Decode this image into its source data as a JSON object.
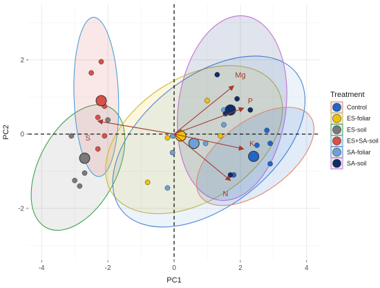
{
  "chart_data": {
    "type": "scatter",
    "xlabel": "PC1",
    "ylabel": "PC2",
    "xlim": [
      -4.4,
      4.4
    ],
    "ylim": [
      -3.4,
      3.5
    ],
    "xticks": [
      -4,
      -2,
      0,
      2,
      4
    ],
    "yticks": [
      -2,
      0,
      2
    ],
    "grid": true,
    "legend": {
      "title": "Treatment",
      "position": "right",
      "entries": [
        "Control",
        "ES-foliar",
        "ES-soil",
        "ES+SA-soil",
        "SA-foliar",
        "SA-soil"
      ]
    },
    "colors": {
      "Control": "#2166c9",
      "ES-foliar": "#f0c300",
      "ES-soil": "#7a7a7a",
      "ES+SA-soil": "#d9504a",
      "SA-foliar": "#6f9fd8",
      "SA-soil": "#0d2d6b"
    },
    "ellipse_strokes": {
      "Control": "#e0856e",
      "ES-foliar": "#c8bb3a",
      "ES-soil": "#3aa34a",
      "ES+SA-soil": "#4aa0d8",
      "SA-foliar": "#4a86d4",
      "SA-soil": "#c46fd6"
    },
    "ellipses": [
      {
        "group": "ES-soil",
        "cx": -2.9,
        "cy": -0.9,
        "rx": 2.05,
        "ry": 1.05,
        "angle": 62
      },
      {
        "group": "ES+SA-soil",
        "cx": -2.35,
        "cy": 1.0,
        "rx": 2.4,
        "ry": 0.6,
        "angle": 92
      },
      {
        "group": "ES-foliar",
        "cx": 0.6,
        "cy": -0.15,
        "rx": 2.95,
        "ry": 1.65,
        "angle": 33
      },
      {
        "group": "SA-foliar",
        "cx": 1.05,
        "cy": -0.2,
        "rx": 3.35,
        "ry": 1.75,
        "angle": 38
      },
      {
        "group": "SA-soil",
        "cx": 1.75,
        "cy": 0.7,
        "rx": 2.8,
        "ry": 1.45,
        "angle": 82
      },
      {
        "group": "Control",
        "cx": 2.45,
        "cy": -0.6,
        "rx": 2.05,
        "ry": 0.95,
        "angle": 36
      }
    ],
    "points": [
      {
        "group": "Control",
        "x": 2.4,
        "y": -0.6,
        "centroid": true
      },
      {
        "group": "Control",
        "x": 2.8,
        "y": 0.1
      },
      {
        "group": "Control",
        "x": 2.9,
        "y": -0.8
      },
      {
        "group": "Control",
        "x": 2.5,
        "y": -0.3
      },
      {
        "group": "Control",
        "x": 2.9,
        "y": -0.25
      },
      {
        "group": "Control",
        "x": 1.8,
        "y": -1.1
      },
      {
        "group": "ES-foliar",
        "x": 0.2,
        "y": -0.05,
        "centroid": true
      },
      {
        "group": "ES-foliar",
        "x": 1.0,
        "y": 0.9
      },
      {
        "group": "ES-foliar",
        "x": 1.4,
        "y": -0.05
      },
      {
        "group": "ES-foliar",
        "x": -0.8,
        "y": -1.3
      },
      {
        "group": "ES-foliar",
        "x": -0.2,
        "y": -0.1
      },
      {
        "group": "ES-foliar",
        "x": 0.2,
        "y": 0.05
      },
      {
        "group": "ES-soil",
        "x": -2.7,
        "y": -0.65,
        "centroid": true
      },
      {
        "group": "ES-soil",
        "x": -3.1,
        "y": -0.05
      },
      {
        "group": "ES-soil",
        "x": -3.0,
        "y": -1.25
      },
      {
        "group": "ES-soil",
        "x": -2.85,
        "y": -1.4
      },
      {
        "group": "ES-soil",
        "x": -2.7,
        "y": -1.05
      },
      {
        "group": "ES-soil",
        "x": -2.0,
        "y": 0.38
      },
      {
        "group": "ES+SA-soil",
        "x": -2.2,
        "y": 0.9,
        "centroid": true
      },
      {
        "group": "ES+SA-soil",
        "x": -2.5,
        "y": 1.65
      },
      {
        "group": "ES+SA-soil",
        "x": -2.2,
        "y": 1.95
      },
      {
        "group": "ES+SA-soil",
        "x": -2.1,
        "y": 0.75
      },
      {
        "group": "ES+SA-soil",
        "x": -2.3,
        "y": 0.45
      },
      {
        "group": "ES+SA-soil",
        "x": -2.1,
        "y": -0.05
      },
      {
        "group": "ES+SA-soil",
        "x": -2.3,
        "y": -0.4
      },
      {
        "group": "SA-foliar",
        "x": 0.6,
        "y": -0.25,
        "centroid": true
      },
      {
        "group": "SA-foliar",
        "x": 0.95,
        "y": -0.25
      },
      {
        "group": "SA-foliar",
        "x": 1.5,
        "y": 0.25
      },
      {
        "group": "SA-foliar",
        "x": 1.5,
        "y": 0.65
      },
      {
        "group": "SA-foliar",
        "x": -0.05,
        "y": -0.5
      },
      {
        "group": "SA-foliar",
        "x": -0.2,
        "y": -1.45
      },
      {
        "group": "SA-foliar",
        "x": -0.05,
        "y": -0.05
      },
      {
        "group": "SA-soil",
        "x": 1.7,
        "y": 0.65,
        "centroid": true
      },
      {
        "group": "SA-soil",
        "x": 1.3,
        "y": 1.6
      },
      {
        "group": "SA-soil",
        "x": 1.9,
        "y": 0.95
      },
      {
        "group": "SA-soil",
        "x": 2.3,
        "y": 0.65
      },
      {
        "group": "SA-soil",
        "x": 1.55,
        "y": 0.55
      },
      {
        "group": "SA-soil",
        "x": 1.7,
        "y": -1.1
      }
    ],
    "loadings": [
      {
        "label": "Mg",
        "x": 1.8,
        "y": 1.3
      },
      {
        "label": "P",
        "x": 2.1,
        "y": 0.7
      },
      {
        "label": "K",
        "x": 2.1,
        "y": -0.4
      },
      {
        "label": "N",
        "x": 1.7,
        "y": -1.25
      },
      {
        "label": "S",
        "x": -2.3,
        "y": 0.35
      }
    ],
    "loading_label_offsets": {
      "Mg": [
        0.2,
        0.3
      ],
      "P": [
        0.2,
        0.2
      ],
      "K": [
        0.25,
        0.15
      ],
      "N": [
        -0.15,
        -0.35
      ],
      "S": [
        -0.3,
        -0.45
      ]
    }
  }
}
